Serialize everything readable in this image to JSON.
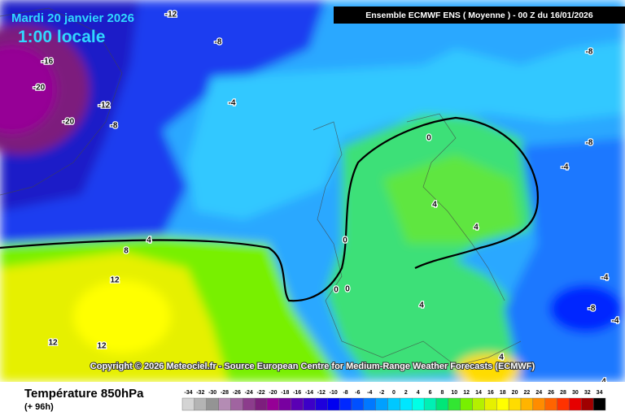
{
  "date_label": "Mardi 20 janvier 2026",
  "time_label": "1:00 locale",
  "model_label": "Ensemble ECMWF ENS  ( Moyenne )  -  00 Z du 16/01/2026",
  "copyright": "Copyright © 2026 Meteociel.fr - Source European Centre for Medium-Range Weather Forecasts (ECMWF)",
  "legend": {
    "title": "Température 850hPa",
    "subtitle": "(+ 96h)",
    "scale": [
      -34,
      -32,
      -30,
      -28,
      -26,
      -24,
      -22,
      -20,
      -18,
      -16,
      -14,
      -12,
      -10,
      -8,
      -6,
      -4,
      -2,
      0,
      2,
      4,
      6,
      8,
      10,
      12,
      14,
      16,
      18,
      20,
      22,
      24,
      26,
      28,
      30,
      32,
      34
    ],
    "colors": [
      "#d4d4d4",
      "#b4b4b4",
      "#949494",
      "#b48cb4",
      "#a064a0",
      "#8c3c8c",
      "#7d1e7d",
      "#960096",
      "#7800a0",
      "#5a00b4",
      "#3c00c8",
      "#1e00dc",
      "#0000f0",
      "#0028ff",
      "#0050ff",
      "#0078ff",
      "#00a0ff",
      "#00c8ff",
      "#00e6ff",
      "#00ffe6",
      "#00f0b4",
      "#00e678",
      "#32e632",
      "#78f000",
      "#b4f000",
      "#e6f000",
      "#ffff00",
      "#ffdc00",
      "#ffb400",
      "#ff8c00",
      "#ff6400",
      "#ff3200",
      "#e60000",
      "#a00000",
      "#000000"
    ]
  },
  "contour_labels": [
    -12,
    -16,
    -20,
    -20,
    -12,
    -8,
    -8,
    -4,
    -8,
    -8,
    -4,
    4,
    8,
    12,
    12,
    12,
    0,
    4,
    4,
    0,
    0,
    0,
    4,
    -4,
    -8,
    -4,
    4,
    4
  ]
}
